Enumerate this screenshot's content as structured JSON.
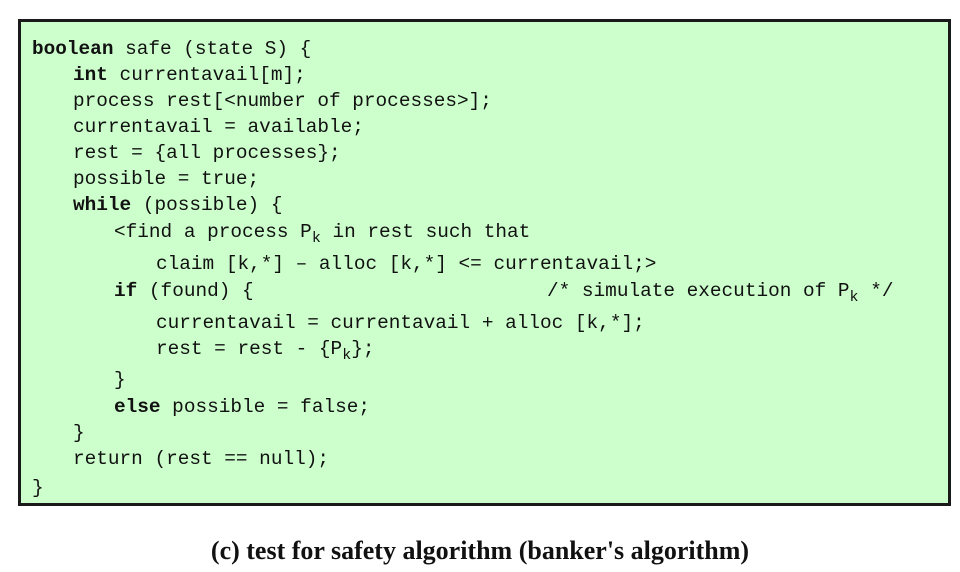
{
  "code": {
    "l1": {
      "kw": "boolean",
      "rest": " safe (state S) {"
    },
    "l2": {
      "kw": "int",
      "rest": " currentavail[m];"
    },
    "l3": "process rest[<number of processes>];",
    "l4": "currentavail = available;",
    "l5": "rest = {all processes};",
    "l6": "possible = true;",
    "l7": {
      "kw": "while",
      "rest": " (possible) {"
    },
    "l8": {
      "pre": "<find a process P",
      "sub": "k",
      "post": " in rest such that"
    },
    "l9": "claim [k,*] – alloc [k,*] <= currentavail;>",
    "l10": {
      "kw": "if",
      "rest": " (found) {",
      "comment_pre": "/* simulate execution of P",
      "comment_sub": "k",
      "comment_post": " */"
    },
    "l11": "currentavail = currentavail + alloc [k,*];",
    "l12": {
      "pre": "rest = rest - {P",
      "sub": "k",
      "post": "};"
    },
    "l13": "}",
    "l14": {
      "kw": "else",
      "rest": " possible = false;"
    },
    "l15": "}",
    "l16": "return (rest == null);",
    "l17": "}"
  },
  "caption": "(c) test for safety algorithm (banker's algorithm)"
}
